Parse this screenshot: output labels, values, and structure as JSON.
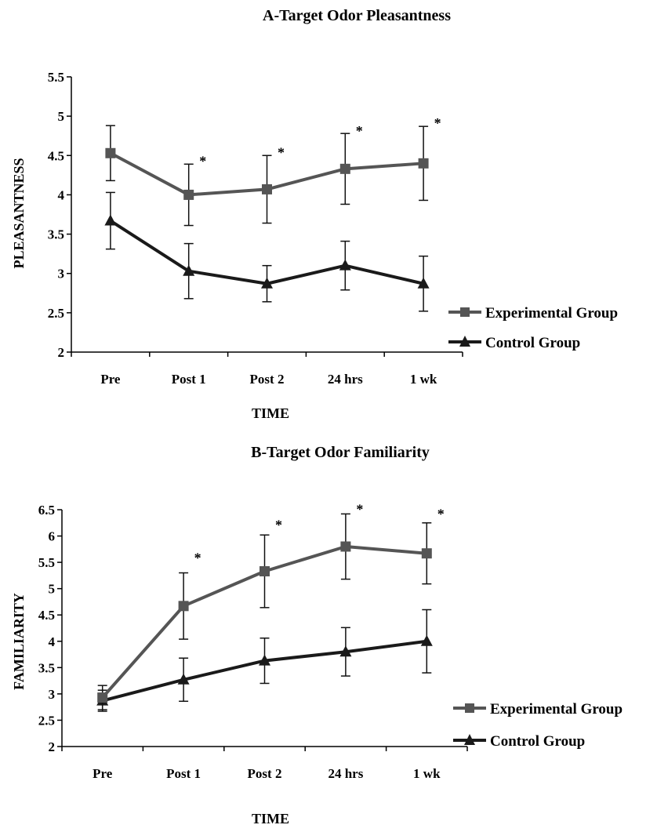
{
  "chart_data": [
    {
      "type": "line",
      "title": "A-Target Odor Pleasantness",
      "xlabel": "TIME",
      "ylabel": "PLEASANTNESS",
      "categories": [
        "Pre",
        "Post 1",
        "Post 2",
        "24 hrs",
        "1 wk"
      ],
      "ylim": [
        2,
        5.5
      ],
      "yticks": [
        "2",
        "2.5",
        "3",
        "3.5",
        "4",
        "4.5",
        "5",
        "5.5"
      ],
      "legend": "right",
      "grid": false,
      "series": [
        {
          "name": "Experimental Group",
          "marker": "square",
          "color": "#555555",
          "values": [
            4.53,
            4.0,
            4.07,
            4.33,
            4.4
          ],
          "error": [
            0.35,
            0.39,
            0.43,
            0.45,
            0.47
          ]
        },
        {
          "name": "Control Group",
          "marker": "triangle",
          "color": "#1a1a1a",
          "values": [
            3.67,
            3.03,
            2.87,
            3.1,
            2.87
          ],
          "error": [
            0.36,
            0.35,
            0.23,
            0.31,
            0.35
          ]
        }
      ],
      "annotations": [
        {
          "text": "*",
          "category": "Post 1",
          "y": 4.49
        },
        {
          "text": "*",
          "category": "Post 2",
          "y": 4.6
        },
        {
          "text": "*",
          "category": "24 hrs",
          "y": 4.87
        },
        {
          "text": "*",
          "category": "1 wk",
          "y": 4.97
        }
      ]
    },
    {
      "type": "line",
      "title": "B-Target Odor Familiarity",
      "xlabel": "TIME",
      "ylabel": "FAMILIARITY",
      "categories": [
        "Pre",
        "Post 1",
        "Post 2",
        "24 hrs",
        "1 wk"
      ],
      "ylim": [
        2,
        6.5
      ],
      "yticks": [
        "2",
        "2.5",
        "3",
        "3.5",
        "4",
        "4.5",
        "5",
        "5.5",
        "6",
        "6.5"
      ],
      "legend": "right",
      "grid": false,
      "series": [
        {
          "name": "Experimental Group",
          "marker": "square",
          "color": "#555555",
          "values": [
            2.93,
            4.67,
            5.33,
            5.8,
            5.67
          ],
          "error": [
            0.23,
            0.63,
            0.69,
            0.62,
            0.58
          ]
        },
        {
          "name": "Control Group",
          "marker": "triangle",
          "color": "#1a1a1a",
          "values": [
            2.87,
            3.27,
            3.63,
            3.8,
            4.0
          ],
          "error": [
            0.2,
            0.41,
            0.43,
            0.46,
            0.6
          ]
        }
      ],
      "annotations": [
        {
          "text": "*",
          "category": "Post 1",
          "y": 5.67
        },
        {
          "text": "*",
          "category": "Post 2",
          "y": 6.3
        },
        {
          "text": "*",
          "category": "24 hrs",
          "y": 6.6
        },
        {
          "text": "*",
          "category": "1 wk",
          "y": 6.51
        }
      ]
    }
  ]
}
